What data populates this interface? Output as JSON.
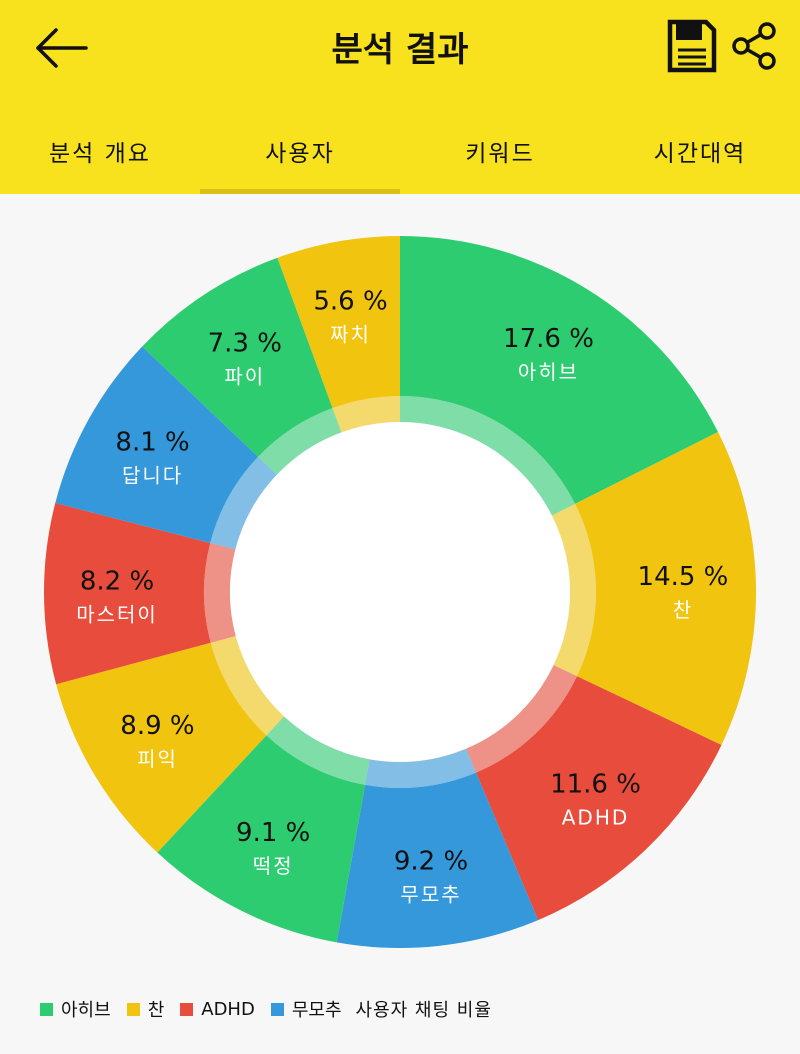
{
  "header": {
    "title": "분석 결과",
    "back_icon": "arrow-left-icon",
    "save_icon": "save-icon",
    "share_icon": "share-icon"
  },
  "tabs": [
    {
      "label": "분석 개요",
      "active": false
    },
    {
      "label": "사용자",
      "active": true
    },
    {
      "label": "키워드",
      "active": false
    },
    {
      "label": "시간대역",
      "active": false
    }
  ],
  "colors": {
    "appbar": "#f8e11d",
    "green": "#2ecc71",
    "yellow": "#f1c40f",
    "red": "#e74c3c",
    "blue": "#3498db"
  },
  "chart_data": {
    "type": "pie",
    "donut": true,
    "slices": [
      {
        "label": "아히브",
        "value": 17.6,
        "pct_text": "17.6 %",
        "color": "#2ecc71"
      },
      {
        "label": "찬",
        "value": 14.5,
        "pct_text": "14.5 %",
        "color": "#f1c40f"
      },
      {
        "label": "ADHD",
        "value": 11.6,
        "pct_text": "11.6 %",
        "color": "#e74c3c"
      },
      {
        "label": "무모추",
        "value": 9.2,
        "pct_text": "9.2 %",
        "color": "#3498db"
      },
      {
        "label": "떡정",
        "value": 9.1,
        "pct_text": "9.1 %",
        "color": "#2ecc71"
      },
      {
        "label": "피익",
        "value": 8.9,
        "pct_text": "8.9 %",
        "color": "#f1c40f"
      },
      {
        "label": "마스터이",
        "value": 8.2,
        "pct_text": "8.2 %",
        "color": "#e74c3c"
      },
      {
        "label": "답니다",
        "value": 8.1,
        "pct_text": "8.1 %",
        "color": "#3498db"
      },
      {
        "label": "파이",
        "value": 7.3,
        "pct_text": "7.3 %",
        "color": "#2ecc71"
      },
      {
        "label": "짜치",
        "value": 5.6,
        "pct_text": "5.6 %",
        "color": "#f1c40f"
      }
    ],
    "legend": {
      "entries": [
        {
          "label": "아히브",
          "color": "#2ecc71"
        },
        {
          "label": "찬",
          "color": "#f1c40f"
        },
        {
          "label": "ADHD",
          "color": "#e74c3c"
        },
        {
          "label": "무모추",
          "color": "#3498db"
        }
      ],
      "description": "사용자 채팅 비율",
      "placement": "bottom-left"
    }
  }
}
